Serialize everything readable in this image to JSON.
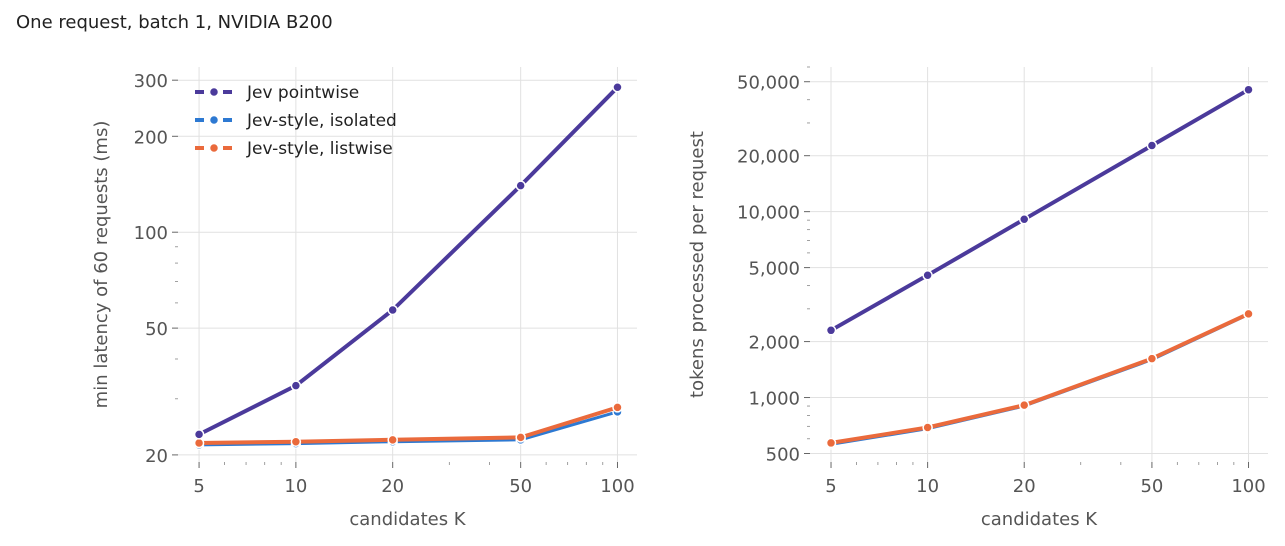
{
  "figure": {
    "title": "One request, batch 1, NVIDIA B200",
    "colors": {
      "pointwise": "#4b3a9b",
      "isolated": "#2d79d2",
      "listwise": "#ea6a3c",
      "grid": "#e1e1e1",
      "axis_text": "#555555"
    }
  },
  "chart_data": [
    {
      "type": "line",
      "xlabel": "candidates K",
      "ylabel": "min latency of 60 requests (ms)",
      "xscale": "log",
      "yscale": "log",
      "xlim": [
        4.3,
        115
      ],
      "ylim": [
        19,
        330
      ],
      "x": [
        5,
        10,
        20,
        50,
        100
      ],
      "xticks": [
        5,
        10,
        20,
        50,
        100
      ],
      "xtick_labels": [
        "5",
        "10",
        "20",
        "50",
        "100"
      ],
      "yticks": [
        20,
        50,
        100,
        200,
        300
      ],
      "ytick_labels": [
        "20",
        "50",
        "100",
        "200",
        "300"
      ],
      "grid": true,
      "legend": {
        "position": "top-left"
      },
      "series": [
        {
          "name": "Jev pointwise",
          "key": "pointwise",
          "values": [
            23.2,
            33,
            57,
            140,
            285
          ]
        },
        {
          "name": "Jev-style, isolated",
          "key": "isolated",
          "values": [
            21.5,
            21.7,
            22.0,
            22.3,
            27.3
          ]
        },
        {
          "name": "Jev-style, listwise",
          "key": "listwise",
          "values": [
            21.8,
            22.0,
            22.3,
            22.7,
            28.2
          ]
        }
      ]
    },
    {
      "type": "line",
      "xlabel": "candidates K",
      "ylabel": "tokens processed per request",
      "xscale": "log",
      "yscale": "log",
      "xlim": [
        4.3,
        115
      ],
      "ylim": [
        450,
        60000
      ],
      "x": [
        5,
        10,
        20,
        50,
        100
      ],
      "xticks": [
        5,
        10,
        20,
        50,
        100
      ],
      "xtick_labels": [
        "5",
        "10",
        "20",
        "50",
        "100"
      ],
      "yticks": [
        500,
        1000,
        2000,
        5000,
        10000,
        20000,
        50000
      ],
      "ytick_labels": [
        "500",
        "1,000",
        "2,000",
        "5,000",
        "10,000",
        "20,000",
        "50,000"
      ],
      "grid": true,
      "series": [
        {
          "name": "Jev pointwise",
          "key": "pointwise",
          "values": [
            2300,
            4550,
            9100,
            22700,
            45300
          ]
        },
        {
          "name": "Jev-style, isolated",
          "key": "isolated",
          "values": [
            560,
            680,
            900,
            1600,
            2800
          ]
        },
        {
          "name": "Jev-style, listwise",
          "key": "listwise",
          "values": [
            570,
            690,
            910,
            1620,
            2820
          ]
        }
      ]
    }
  ]
}
